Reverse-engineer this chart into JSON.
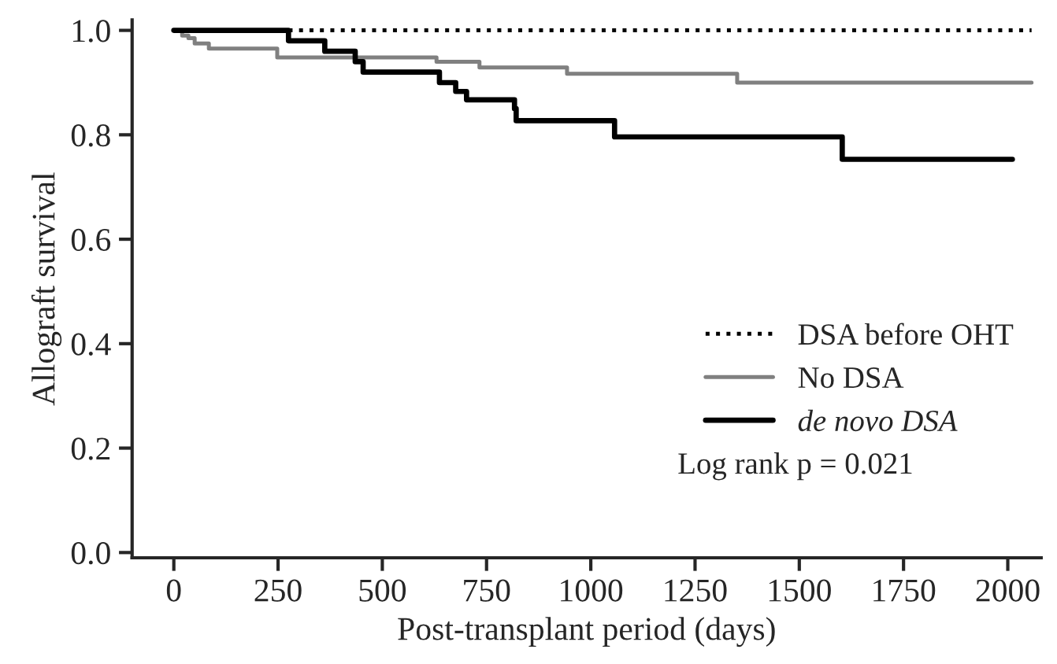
{
  "chart_data": {
    "type": "step",
    "xlabel": "Post-transplant period (days)",
    "ylabel": "Allograft survival",
    "xlim": [
      -100,
      2080
    ],
    "ylim": [
      -0.01,
      1.02
    ],
    "xticks": [
      0,
      250,
      500,
      750,
      1000,
      1250,
      1500,
      1750,
      2000
    ],
    "yticks": [
      {
        "value": 0,
        "label": "0.0"
      },
      {
        "value": 0.2,
        "label": "0.2"
      },
      {
        "value": 0.4,
        "label": "0.4"
      },
      {
        "value": 0.6,
        "label": "0.6"
      },
      {
        "value": 0.8,
        "label": "0.8"
      },
      {
        "value": 1,
        "label": "1.0"
      }
    ],
    "grid": false,
    "legend": "right",
    "annotations": [
      "Log rank p = 0.021"
    ],
    "series": [
      {
        "name": "DSA before OHT",
        "color": "#000000",
        "line_style": "dotted",
        "x": [
          0,
          2057
        ],
        "values": [
          1.0,
          1.0
        ]
      },
      {
        "name": "No DSA",
        "color": "#808080",
        "line_style": "solid",
        "x": [
          0,
          20,
          35,
          50,
          84,
          248,
          630,
          733,
          943,
          1351,
          2057
        ],
        "values": [
          1.0,
          0.99,
          0.985,
          0.975,
          0.965,
          0.948,
          0.94,
          0.929,
          0.917,
          0.9,
          0.9
        ]
      },
      {
        "name": "de novo DSA",
        "color": "#000000",
        "line_style": "solid",
        "x": [
          0,
          275,
          362,
          435,
          454,
          637,
          676,
          702,
          817,
          821,
          1057,
          1603,
          2011
        ],
        "values": [
          1.0,
          0.98,
          0.96,
          0.94,
          0.92,
          0.9,
          0.883,
          0.867,
          0.85,
          0.827,
          0.796,
          0.753,
          0.753
        ]
      }
    ]
  }
}
